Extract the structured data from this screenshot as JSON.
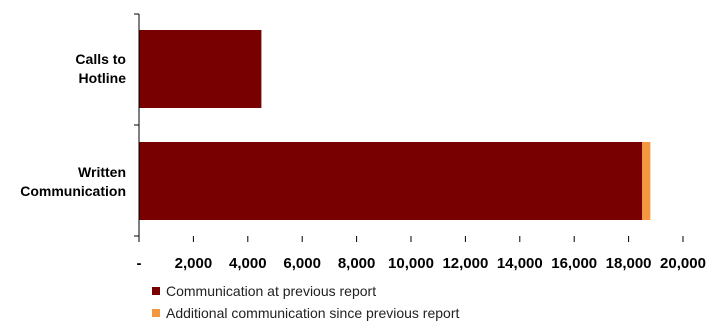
{
  "chart_data": {
    "type": "bar",
    "orientation": "horizontal",
    "stacked": true,
    "categories": [
      "Calls to Hotline",
      "Written Communication"
    ],
    "category_lines": [
      [
        "Calls to",
        "Hotline"
      ],
      [
        "Written",
        "Communication"
      ]
    ],
    "series": [
      {
        "name": "Communication at previous report",
        "values": [
          4500,
          18500
        ],
        "color": "#780000"
      },
      {
        "name": "Additional communication since previous report",
        "values": [
          0,
          300
        ],
        "color": "#f4973e"
      }
    ],
    "xlim": [
      0,
      20000
    ],
    "xticks": [
      0,
      2000,
      4000,
      6000,
      8000,
      10000,
      12000,
      14000,
      16000,
      18000,
      20000
    ],
    "xtick_labels": [
      "-",
      "2,000",
      "4,000",
      "6,000",
      "8,000",
      "10,000",
      "12,000",
      "14,000",
      "16,000",
      "18,000",
      "20,000"
    ],
    "grid": false,
    "legend_position": "bottom"
  }
}
